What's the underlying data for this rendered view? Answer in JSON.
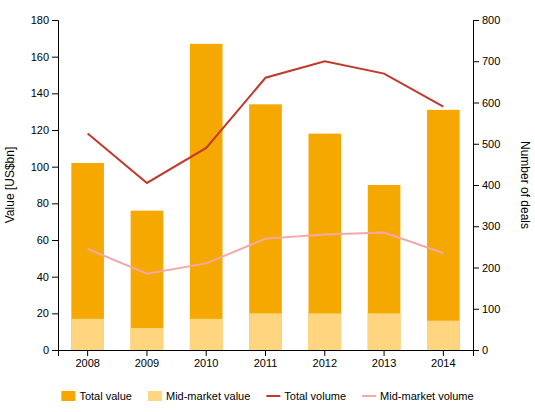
{
  "chart_data": {
    "type": "bar",
    "categories": [
      2008,
      2009,
      2010,
      2011,
      2012,
      2013,
      2014
    ],
    "series": [
      {
        "name": "Total value",
        "type": "bar",
        "color": "#F5A800",
        "values": [
          102,
          76,
          167,
          134,
          118,
          90,
          131
        ]
      },
      {
        "name": "Mid-market value",
        "type": "bar",
        "color": "#FFD580",
        "values": [
          17,
          12,
          17,
          20,
          20,
          20,
          16
        ]
      },
      {
        "name": "Total volume",
        "type": "line",
        "axis": "y2",
        "color": "#C0392B",
        "values": [
          525,
          405,
          490,
          660,
          700,
          670,
          590
        ]
      },
      {
        "name": "Mid-market volume",
        "type": "line",
        "axis": "y2",
        "color": "#F4A9A8",
        "values": [
          245,
          185,
          210,
          270,
          280,
          285,
          235
        ]
      }
    ],
    "ylabel": "Value [US$bn]",
    "y2label": "Number of deals",
    "ylim": [
      0,
      180
    ],
    "yticks": [
      0,
      20,
      40,
      60,
      80,
      100,
      120,
      140,
      160,
      180
    ],
    "y2lim": [
      0,
      800
    ],
    "y2ticks": [
      0,
      100,
      200,
      300,
      400,
      500,
      600,
      700,
      800
    ],
    "grid": false,
    "legend": "bottom"
  }
}
